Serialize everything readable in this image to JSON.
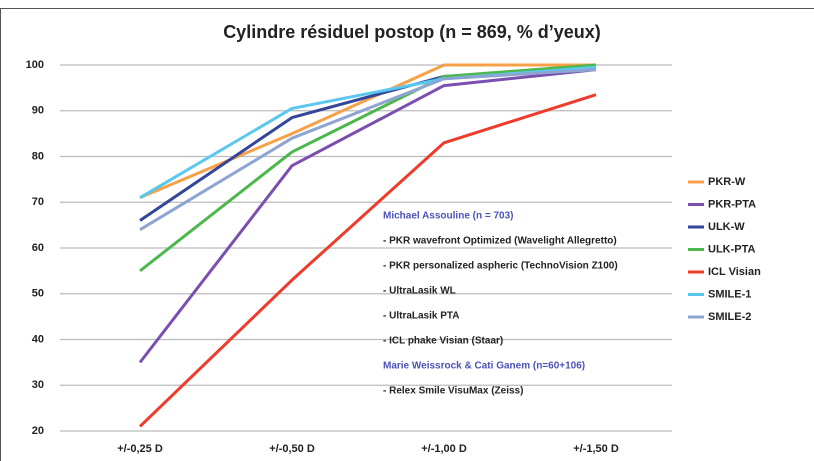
{
  "chart_data": {
    "type": "line",
    "title": "Cylindre résiduel postop (n = 869, % d’yeux)",
    "categories": [
      "+/-0,25 D",
      "+/-0,50 D",
      "+/-1,00 D",
      "+/-1,50 D"
    ],
    "series": [
      {
        "name": "PKR-W",
        "color": "#f7a04a",
        "values": [
          71,
          85,
          100,
          100
        ]
      },
      {
        "name": "PKR-PTA",
        "color": "#7a4fb0",
        "values": [
          35,
          78,
          95.5,
          99
        ]
      },
      {
        "name": "ULK-W",
        "color": "#33469a",
        "values": [
          66,
          88.5,
          97.5,
          99.5
        ]
      },
      {
        "name": "ULK-PTA",
        "color": "#4cb84c",
        "values": [
          55,
          81,
          97.5,
          100
        ]
      },
      {
        "name": "ICL Visian",
        "color": "#ee3b2c",
        "values": [
          21,
          53,
          83,
          93.5
        ]
      },
      {
        "name": "SMILE-1",
        "color": "#5ac8ee",
        "values": [
          71,
          90.5,
          97,
          99.5
        ]
      },
      {
        "name": "SMILE-2",
        "color": "#8ea4d2",
        "values": [
          64,
          84,
          97,
          99
        ]
      }
    ],
    "ylim": [
      20,
      100
    ],
    "yticks": [
      20,
      30,
      40,
      50,
      60,
      70,
      80,
      90,
      100
    ],
    "grid": true,
    "legend": "right",
    "annotations": [
      {
        "text": "Michael Assouline (n = 703)",
        "color": "#4a52b8"
      },
      {
        "text": "- PKR wavefront Optimized (Wavelight Allegretto)",
        "color": "#222222"
      },
      {
        "text": "- PKR personalized aspheric (TechnoVision Z100)",
        "color": "#222222"
      },
      {
        "text": "- UltraLasik WL",
        "color": "#222222"
      },
      {
        "text": "- UltraLasik PTA",
        "color": "#222222"
      },
      {
        "text": "- ICL phake Visian (Staar)",
        "color": "#222222"
      },
      {
        "text": "Marie Weissrock & Cati Ganem (n=60+106)",
        "color": "#4a52b8"
      },
      {
        "text": "- Relex Smile VisuMax (Zeiss)",
        "color": "#222222"
      }
    ]
  }
}
